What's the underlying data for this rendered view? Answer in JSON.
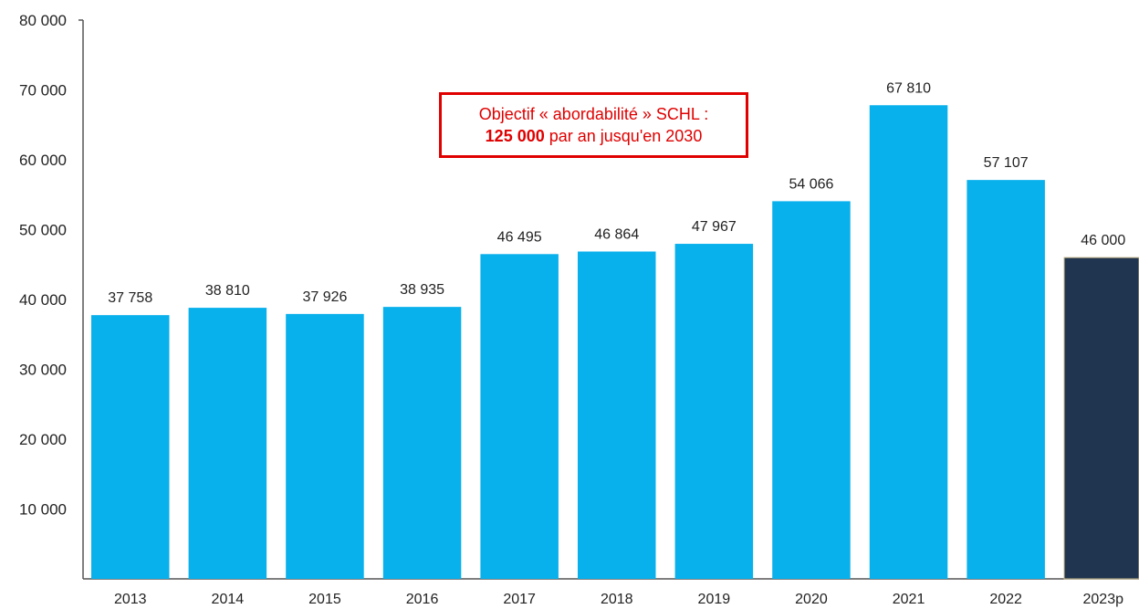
{
  "chart_data": {
    "type": "bar",
    "categories": [
      "2013",
      "2014",
      "2015",
      "2016",
      "2017",
      "2018",
      "2019",
      "2020",
      "2021",
      "2022",
      "2023p"
    ],
    "values": [
      37758,
      38810,
      37926,
      38935,
      46495,
      46864,
      47967,
      54066,
      67810,
      57107,
      46000
    ],
    "data_labels": [
      "37 758",
      "38 810",
      "37 926",
      "38 935",
      "46 495",
      "46 864",
      "47 967",
      "54 066",
      "67 810",
      "57 107",
      "46 000"
    ],
    "y_ticks": [
      {
        "value": 10000,
        "label": "10 000"
      },
      {
        "value": 20000,
        "label": "20 000"
      },
      {
        "value": 30000,
        "label": "30 000"
      },
      {
        "value": 40000,
        "label": "40 000"
      },
      {
        "value": 50000,
        "label": "50 000"
      },
      {
        "value": 60000,
        "label": "60 000"
      },
      {
        "value": 70000,
        "label": "70 000"
      },
      {
        "value": 80000,
        "label": "80 000"
      }
    ],
    "ylim": [
      0,
      80000
    ],
    "grid": false,
    "legend": "none",
    "title": "",
    "xlabel": "",
    "ylabel": "",
    "colors": {
      "bar": "#08b0ec",
      "projection_bar": "#203550",
      "projection_bar_outline": "#c9b98a",
      "axis": "#555555",
      "text": "#222222"
    },
    "projection_index": 10
  },
  "annotation": {
    "line1": "Objectif « abordabilité » SCHL :",
    "line2_strong": "125 000",
    "line2_rest": " par an jusqu'en 2030",
    "color": "#e00000"
  }
}
